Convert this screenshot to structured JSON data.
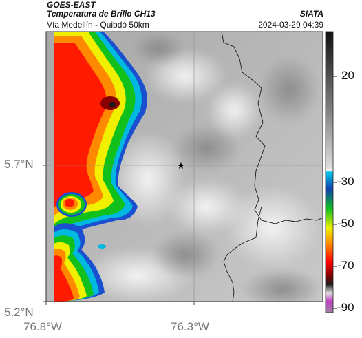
{
  "header": {
    "satellite": "GOES-EAST",
    "product": "Temperatura de Brillo CH13",
    "route": "Vía Medellín - Quibdó 50km",
    "agency": "SIATA",
    "datetime": "2024-03-29 04:39"
  },
  "axes": {
    "lat_ticks": [
      "5.7°N",
      "5.2°N"
    ],
    "lon_ticks": [
      "76.8°W",
      "76.3°W"
    ]
  },
  "colorbar": {
    "labels": [
      "20",
      "-30",
      "-50",
      "-70",
      "-90"
    ],
    "stops": [
      "#111111",
      "#8a8a8a",
      "#dcdcdc",
      "#f2f2f2",
      "#00c8e8",
      "#1040b0",
      "#10c020",
      "#f0f000",
      "#ff8000",
      "#ff0000",
      "#800000",
      "#202020",
      "#c040c0",
      "#a080a0"
    ]
  },
  "map": {
    "marker": "star-marker",
    "marker_symbol": "★"
  }
}
